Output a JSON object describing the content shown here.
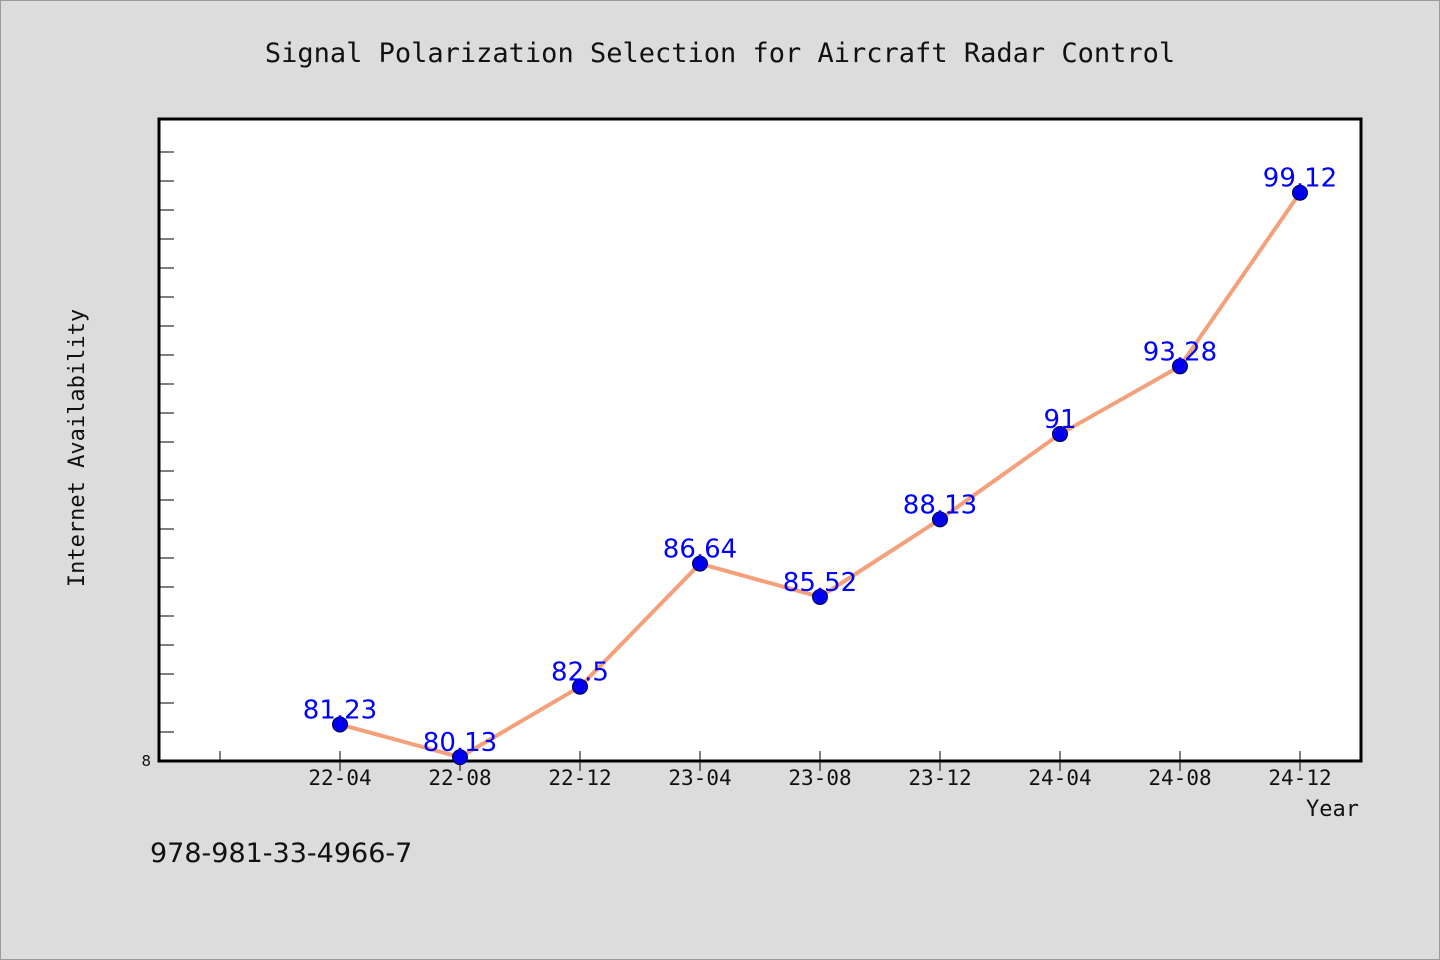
{
  "chart_data": {
    "type": "line",
    "title": "Signal Polarization Selection for Aircraft Radar Control",
    "xlabel": "Year",
    "ylabel": "Internet Availability",
    "categories": [
      "22-04",
      "22-08",
      "22-12",
      "23-04",
      "23-08",
      "23-12",
      "24-04",
      "24-08",
      "24-12"
    ],
    "series": [
      {
        "values": [
          81.23,
          80.13,
          82.5,
          86.64,
          85.52,
          88.13,
          91,
          93.28,
          99.12
        ],
        "labels": [
          "81.23",
          "80.13",
          "82.5",
          "86.64",
          "85.52",
          "88.13",
          "91",
          "93.28",
          "99.12"
        ]
      }
    ],
    "ylim": [
      80,
      101.6
    ],
    "y_min_label": "8",
    "grid": false,
    "line_color": "#f4a07a",
    "marker_color": "#0000ee",
    "label_color": "#0000ff"
  },
  "footer": {
    "isbn": "978-981-33-4966-7"
  }
}
